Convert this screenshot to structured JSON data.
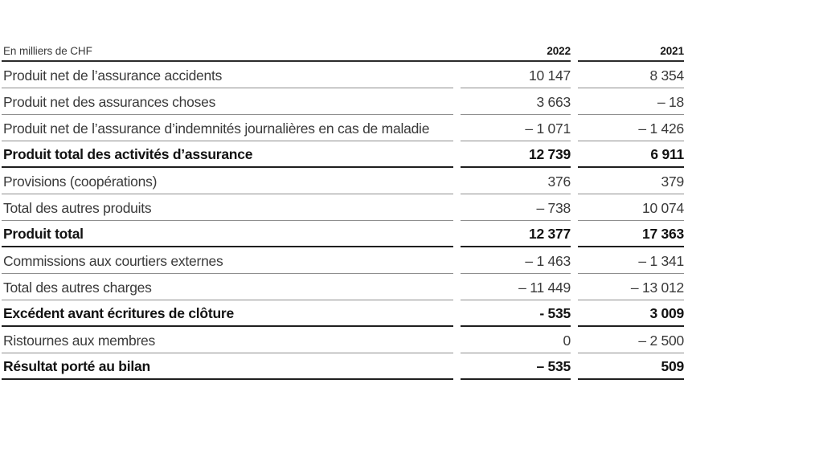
{
  "table": {
    "unit_label": "En milliers de CHF",
    "columns": [
      "2022",
      "2021"
    ],
    "rows": [
      {
        "label": "Produit net de l’assurance accidents",
        "values": [
          "10 147",
          "8 354"
        ],
        "bold": false
      },
      {
        "label": "Produit net des assurances choses",
        "values": [
          "3 663",
          "– 18"
        ],
        "bold": false
      },
      {
        "label": "Produit net de l’assurance d’indemnités journalières en cas de maladie",
        "values": [
          "– 1 071",
          "– 1 426"
        ],
        "bold": false
      },
      {
        "label": "Produit total des activités d’assurance",
        "values": [
          "12 739",
          "6 911"
        ],
        "bold": true
      },
      {
        "label": "Provisions (coopérations)",
        "values": [
          "376",
          "379"
        ],
        "bold": false
      },
      {
        "label": "Total des autres produits",
        "values": [
          "– 738",
          "10 074"
        ],
        "bold": false
      },
      {
        "label": "Produit total",
        "values": [
          "12 377",
          "17 363"
        ],
        "bold": true
      },
      {
        "label": "Commissions aux courtiers externes",
        "values": [
          "– 1 463",
          "– 1 341"
        ],
        "bold": false
      },
      {
        "label": "Total des autres charges",
        "values": [
          "– 11 449",
          "– 13 012"
        ],
        "bold": false
      },
      {
        "label": "Excédent avant écritures de clôture",
        "values": [
          "- 535",
          "3 009"
        ],
        "bold": true
      },
      {
        "label": "Ristournes aux membres",
        "values": [
          "0",
          "– 2 500"
        ],
        "bold": false
      },
      {
        "label": "Résultat porté au bilan",
        "values": [
          "– 535",
          "509"
        ],
        "bold": true
      }
    ],
    "colors": {
      "regular_text": "#3a3a3a",
      "bold_text": "#121212",
      "thin_rule": "#8f8f8f",
      "thick_rule": "#1f1f1f",
      "background": "#ffffff"
    }
  }
}
